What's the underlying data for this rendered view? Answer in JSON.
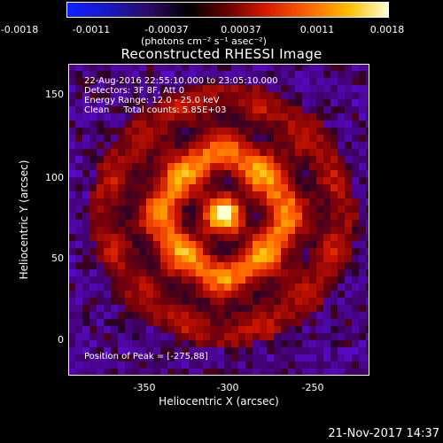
{
  "colorbar": {
    "ticks": [
      "-0.0018",
      "-0.0011",
      "-0.00037",
      "0.00037",
      "0.0011",
      "0.0018"
    ],
    "unit": "(photons cm⁻² s⁻¹ asec⁻²)"
  },
  "title": "Reconstructed RHESSI Image",
  "info": {
    "line1": "22-Aug-2016 22:55:10.000 to 23:05:10.000",
    "line2": "Detectors: 3F 8F, Att 0",
    "line3": "Energy Range: 12.0 - 25.0 keV",
    "line4": "Clean     Total counts: 5.85E+03"
  },
  "peak_label": "Position of Peak = [-275,88]",
  "axes": {
    "xlabel": "Heliocentric X (arcsec)",
    "ylabel": "Heliocentric Y (arcsec)",
    "xticks": [
      "-350",
      "-300",
      "-250"
    ],
    "yticks": [
      "150",
      "100",
      "50",
      "0"
    ]
  },
  "footer_date": "21-Nov-2017 14:37"
}
